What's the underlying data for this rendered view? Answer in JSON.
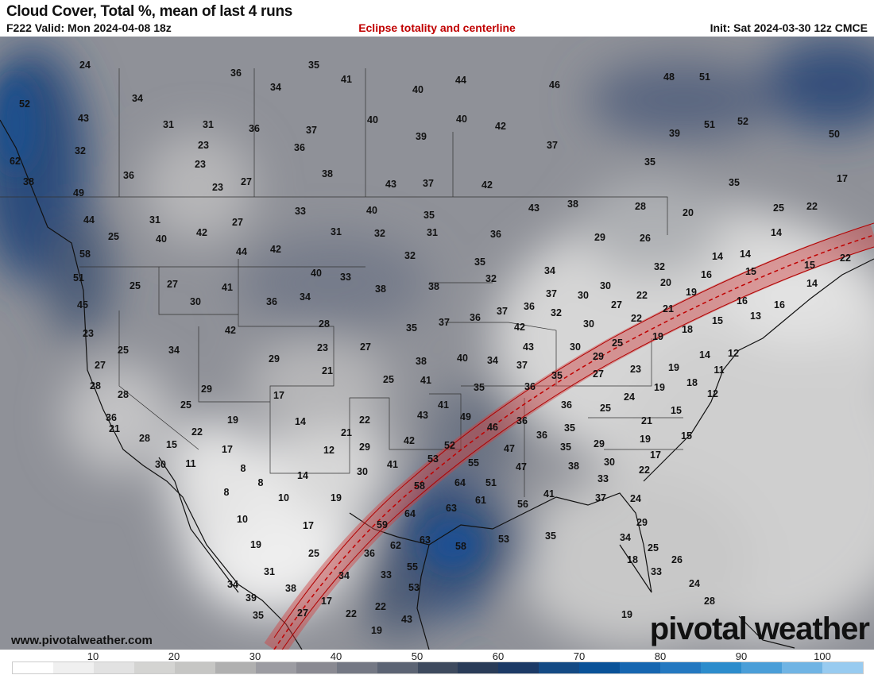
{
  "header": {
    "title": "Cloud Cover, Total %, mean of last 4 runs",
    "valid": "F222 Valid: Mon 2024-04-08 18z",
    "overlay": "Eclipse totality and centerline",
    "init": "Init: Sat 2024-03-30 12z CMCE"
  },
  "colors": {
    "overlay_text": "#c00000",
    "eclipse_band": "#d04040",
    "eclipse_centerline": "#c00000"
  },
  "map_values": [
    24,
    35,
    36,
    41,
    40,
    44,
    46,
    48,
    51,
    52,
    34,
    34,
    43,
    31,
    31,
    36,
    37,
    40,
    40,
    42,
    39,
    51,
    52,
    50,
    32,
    23,
    36,
    39,
    37,
    35,
    62,
    36,
    23,
    27,
    38,
    43,
    37,
    42,
    35,
    17,
    38,
    49,
    23,
    44,
    31,
    42,
    27,
    33,
    40,
    35,
    43,
    38,
    28,
    20,
    25,
    22,
    25,
    40,
    31,
    32,
    31,
    36,
    29,
    26,
    14,
    58,
    44,
    42,
    32,
    35,
    14,
    14,
    15,
    22,
    51,
    25,
    27,
    40,
    33,
    32,
    34,
    32,
    16,
    15,
    14,
    41,
    36,
    34,
    38,
    38,
    30,
    30,
    20,
    19,
    16,
    16,
    45,
    30,
    37,
    36,
    37,
    32,
    27,
    22,
    21,
    13,
    15,
    18,
    23,
    42,
    28,
    35,
    37,
    36,
    42,
    30,
    22,
    25,
    34,
    23,
    27,
    40,
    34,
    43,
    30,
    29,
    25,
    19,
    14,
    12,
    27,
    29,
    21,
    25,
    38,
    37,
    35,
    27,
    23,
    19,
    11,
    28,
    41,
    35,
    36,
    24,
    19,
    18,
    12,
    28,
    29,
    17,
    25,
    41,
    49,
    36,
    25,
    15,
    36,
    19,
    14,
    22,
    43,
    46,
    36,
    35,
    21,
    21,
    22,
    21,
    29,
    42,
    52,
    36,
    29,
    19,
    15,
    28,
    15,
    17,
    12,
    53,
    47,
    35,
    38,
    17,
    30,
    11,
    8,
    41,
    55,
    47,
    30,
    30,
    8,
    14,
    58,
    64,
    51,
    33,
    22,
    8,
    10,
    19,
    41,
    37,
    24,
    63,
    61,
    56,
    10,
    17,
    64,
    59,
    29,
    19,
    25,
    62,
    63,
    58,
    53,
    35,
    34,
    25,
    36,
    26,
    18,
    31,
    34,
    33,
    55,
    33,
    34,
    38,
    53,
    24,
    39,
    17,
    28,
    35,
    27,
    22,
    22,
    43,
    19,
    19
  ],
  "footer": {
    "url": "www.pivotalweather.com",
    "logo": "pivotal weather"
  },
  "colorbar": {
    "ticks": [
      "10",
      "20",
      "30",
      "40",
      "50",
      "60",
      "70",
      "80",
      "90",
      "100"
    ],
    "colors": [
      "#ffffff",
      "#f0f0f0",
      "#e2e2e2",
      "#d4d4d2",
      "#c6c6c4",
      "#b0b0b0",
      "#9c9ca2",
      "#8a8a92",
      "#747884",
      "#5c6474",
      "#3e4a5e",
      "#2a3c58",
      "#1c3a66",
      "#144a84",
      "#0a5298",
      "#1666b0",
      "#2478c0",
      "#2c8ccc",
      "#4a9ed8",
      "#70b4e4",
      "#98cbf0"
    ]
  }
}
